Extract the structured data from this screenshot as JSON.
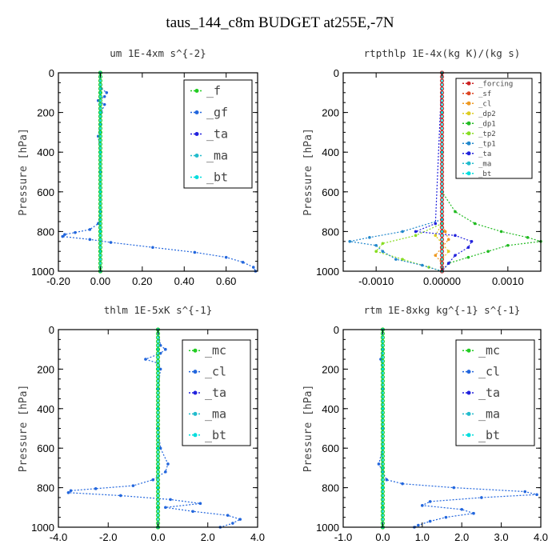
{
  "title": "taus_144_c8m  BUDGET at255E,-7N",
  "chart_data": [
    {
      "type": "line",
      "title": "um  1E-4xm s^{-2}",
      "ylabel": "Pressure [hPa]",
      "xlim": [
        -0.2,
        0.75
      ],
      "ylim": [
        1000,
        0
      ],
      "xticks": [
        "-0.20",
        "0.00",
        "0.20",
        "0.40",
        "0.60"
      ],
      "xtick_values": [
        -0.2,
        0.0,
        0.2,
        0.4,
        0.6
      ],
      "yticks": [
        "0",
        "200",
        "400",
        "600",
        "800",
        "1000"
      ],
      "ytick_values": [
        0,
        200,
        400,
        600,
        800,
        1000
      ],
      "legend_style": "big",
      "series": [
        {
          "name": "_f",
          "color": "#22cc22",
          "y": [
            0,
            100,
            200,
            300,
            400,
            500,
            600,
            700,
            800,
            900,
            1000
          ],
          "x": [
            0,
            0,
            0,
            0,
            0,
            0,
            0,
            0,
            0,
            0,
            0
          ]
        },
        {
          "name": "_gf",
          "color": "#2266dd",
          "y": [
            0,
            80,
            100,
            120,
            140,
            160,
            200,
            260,
            320,
            400,
            500,
            600,
            700,
            760,
            790,
            805,
            815,
            825,
            840,
            855,
            880,
            905,
            930,
            955,
            980,
            1000
          ],
          "x": [
            0,
            0.005,
            0.03,
            0.02,
            -0.01,
            0.02,
            0.005,
            0.0,
            -0.01,
            0.0,
            0.0,
            0.0,
            0.0,
            -0.01,
            -0.05,
            -0.12,
            -0.17,
            -0.18,
            -0.05,
            0.05,
            0.25,
            0.45,
            0.6,
            0.68,
            0.73,
            0.74
          ]
        },
        {
          "name": "_ta",
          "color": "#2222dd",
          "y": [
            0,
            200,
            400,
            600,
            800,
            1000
          ],
          "x": [
            0,
            0,
            0,
            0,
            0,
            0
          ]
        },
        {
          "name": "_ma",
          "color": "#22bbcc",
          "y": [
            0,
            200,
            400,
            600,
            800,
            1000
          ],
          "x": [
            0,
            0,
            0,
            0,
            0,
            0
          ]
        },
        {
          "name": "_bt",
          "color": "#00dddd",
          "y": [
            0,
            200,
            400,
            600,
            800,
            1000
          ],
          "x": [
            0,
            0,
            0,
            0,
            0,
            0
          ]
        }
      ]
    },
    {
      "type": "line",
      "title": "rtpthlp  1E-4x(kg K)/(kg s)",
      "ylabel": "Pressure [hPa]",
      "xlim": [
        -0.0015,
        0.0015
      ],
      "ylim": [
        1000,
        0
      ],
      "xticks": [
        "-0.0010",
        "0.00000",
        "0.0010"
      ],
      "xtick_values": [
        -0.001,
        0.0,
        0.001
      ],
      "yticks": [
        "0",
        "200",
        "400",
        "600",
        "800",
        "1000"
      ],
      "ytick_values": [
        0,
        200,
        400,
        600,
        800,
        1000
      ],
      "legend_style": "small",
      "series": [
        {
          "name": "_forcing",
          "color": "#cc2222",
          "y": [
            0,
            200,
            400,
            600,
            800,
            1000
          ],
          "x": [
            0,
            0,
            0,
            0,
            0,
            0
          ]
        },
        {
          "name": "_sf",
          "color": "#dd4422",
          "y": [
            0,
            200,
            400,
            600,
            800,
            1000
          ],
          "x": [
            0,
            0,
            0,
            0,
            0,
            0
          ]
        },
        {
          "name": "_cl",
          "color": "#ee9922",
          "y": [
            0,
            760,
            800,
            840,
            880,
            920,
            960,
            1000
          ],
          "x": [
            0,
            0,
            5e-05,
            0.0001,
            0.0,
            -0.0001,
            0.0,
            0
          ]
        },
        {
          "name": "_dp2",
          "color": "#ddcc22",
          "y": [
            0,
            760,
            820,
            860,
            900,
            940,
            1000
          ],
          "x": [
            0,
            0,
            -0.0001,
            0.0,
            0.0001,
            0.0,
            0
          ]
        },
        {
          "name": "_dp1",
          "color": "#22bb22",
          "y": [
            0,
            600,
            700,
            760,
            800,
            830,
            850,
            870,
            900,
            930,
            960,
            1000
          ],
          "x": [
            0,
            0,
            0.0002,
            0.0005,
            0.0009,
            0.0013,
            0.0015,
            0.001,
            0.0007,
            0.0004,
            0.0001,
            0
          ]
        },
        {
          "name": "_tp2",
          "color": "#88dd22",
          "y": [
            0,
            760,
            820,
            860,
            900,
            940,
            980,
            1000
          ],
          "x": [
            0,
            0,
            -0.0004,
            -0.0009,
            -0.001,
            -0.0006,
            -0.0002,
            0
          ]
        },
        {
          "name": "_tp1",
          "color": "#2288cc",
          "y": [
            0,
            740,
            800,
            830,
            850,
            870,
            900,
            940,
            970,
            1000
          ],
          "x": [
            0,
            0,
            -0.0006,
            -0.0011,
            -0.0014,
            -0.001,
            -0.0009,
            -0.0007,
            -0.0003,
            0
          ]
        },
        {
          "name": "_ta",
          "color": "#2222dd",
          "y": [
            0,
            760,
            800,
            820,
            850,
            880,
            920,
            960,
            1000
          ],
          "x": [
            0,
            -0.0001,
            -0.0004,
            0.0002,
            0.00045,
            0.0004,
            0.0002,
            0.0001,
            0
          ]
        },
        {
          "name": "_ma",
          "color": "#22bbcc",
          "y": [
            0,
            200,
            400,
            600,
            800,
            1000
          ],
          "x": [
            0,
            0,
            0,
            0,
            0,
            0
          ]
        },
        {
          "name": "_bt",
          "color": "#00dddd",
          "y": [
            0,
            200,
            400,
            600,
            800,
            1000
          ],
          "x": [
            0,
            0,
            0,
            0,
            0,
            0
          ]
        }
      ]
    },
    {
      "type": "line",
      "title": "thlm  1E-5xK s^{-1}",
      "ylabel": "Pressure [hPa]",
      "xlim": [
        -4.0,
        4.0
      ],
      "ylim": [
        1000,
        0
      ],
      "xticks": [
        "-4.0",
        "-2.0",
        "0.0",
        "2.0",
        "4.0"
      ],
      "xtick_values": [
        -4,
        -2,
        0,
        2,
        4
      ],
      "yticks": [
        "0",
        "200",
        "400",
        "600",
        "800",
        "1000"
      ],
      "ytick_values": [
        0,
        200,
        400,
        600,
        800,
        1000
      ],
      "legend_style": "big",
      "series": [
        {
          "name": "_mc",
          "color": "#22cc22",
          "y": [
            0,
            100,
            200,
            300,
            400,
            500,
            600,
            700,
            800,
            900,
            1000
          ],
          "x": [
            0,
            0,
            0,
            0,
            0,
            0,
            0,
            0,
            0,
            0,
            0
          ]
        },
        {
          "name": "_cl",
          "color": "#2266dd",
          "y": [
            0,
            80,
            100,
            120,
            150,
            170,
            200,
            300,
            400,
            500,
            600,
            680,
            720,
            760,
            790,
            805,
            815,
            825,
            840,
            860,
            880,
            900,
            920,
            940,
            960,
            980,
            1000
          ],
          "x": [
            0,
            0.1,
            0.3,
            0.1,
            -0.5,
            0.0,
            0.1,
            0.0,
            0.0,
            0.0,
            0.1,
            0.4,
            0.3,
            -0.2,
            -1.0,
            -2.5,
            -3.5,
            -3.6,
            -1.5,
            0.5,
            1.7,
            0.3,
            1.4,
            2.8,
            3.3,
            3.0,
            2.5
          ]
        },
        {
          "name": "_ta",
          "color": "#2222dd",
          "y": [
            0,
            200,
            400,
            600,
            800,
            1000
          ],
          "x": [
            0,
            0,
            0,
            0,
            0,
            0
          ]
        },
        {
          "name": "_ma",
          "color": "#22bbcc",
          "y": [
            0,
            200,
            400,
            600,
            800,
            1000
          ],
          "x": [
            0,
            0,
            0,
            0,
            0,
            0
          ]
        },
        {
          "name": "_bt",
          "color": "#00dddd",
          "y": [
            0,
            200,
            400,
            600,
            800,
            1000
          ],
          "x": [
            0,
            0,
            0,
            0,
            0,
            0
          ]
        }
      ]
    },
    {
      "type": "line",
      "title": "rtm  1E-8xkg kg^{-1} s^{-1}",
      "ylabel": "Pressure [hPa]",
      "xlim": [
        -1.0,
        4.0
      ],
      "ylim": [
        1000,
        0
      ],
      "xticks": [
        "-1.0",
        "0.0",
        "1.0",
        "2.0",
        "3.0",
        "4.0"
      ],
      "xtick_values": [
        -1,
        0,
        1,
        2,
        3,
        4
      ],
      "yticks": [
        "0",
        "200",
        "400",
        "600",
        "800",
        "1000"
      ],
      "ytick_values": [
        0,
        200,
        400,
        600,
        800,
        1000
      ],
      "legend_style": "big",
      "series": [
        {
          "name": "_mc",
          "color": "#22cc22",
          "y": [
            0,
            100,
            200,
            300,
            400,
            500,
            600,
            700,
            800,
            900,
            1000
          ],
          "x": [
            0,
            0,
            0,
            0,
            0,
            0,
            0,
            0,
            0,
            0,
            0
          ]
        },
        {
          "name": "_cl",
          "color": "#2266dd",
          "y": [
            0,
            100,
            150,
            200,
            300,
            400,
            500,
            600,
            680,
            720,
            760,
            780,
            800,
            820,
            835,
            850,
            870,
            890,
            910,
            930,
            950,
            970,
            990,
            1000
          ],
          "x": [
            0,
            0.0,
            -0.05,
            0.0,
            0.0,
            0.0,
            0.0,
            0.0,
            -0.1,
            0.0,
            0.1,
            0.5,
            1.8,
            3.6,
            3.9,
            2.5,
            1.2,
            1.0,
            2.0,
            2.3,
            1.6,
            1.2,
            0.9,
            0.8
          ]
        },
        {
          "name": "_ta",
          "color": "#2222dd",
          "y": [
            0,
            200,
            400,
            600,
            800,
            1000
          ],
          "x": [
            0,
            0,
            0,
            0,
            0,
            0
          ]
        },
        {
          "name": "_ma",
          "color": "#22bbcc",
          "y": [
            0,
            200,
            400,
            600,
            800,
            1000
          ],
          "x": [
            0,
            0,
            0,
            0,
            0,
            0
          ]
        },
        {
          "name": "_bt",
          "color": "#00dddd",
          "y": [
            0,
            200,
            400,
            600,
            800,
            1000
          ],
          "x": [
            0,
            0,
            0,
            0,
            0,
            0
          ]
        }
      ]
    }
  ]
}
